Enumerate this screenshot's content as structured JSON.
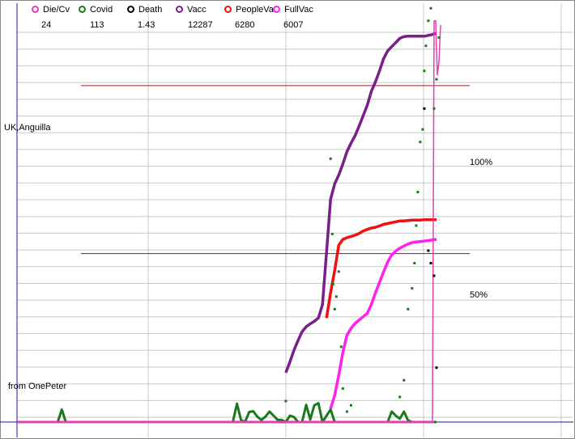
{
  "legend": [
    {
      "label": "Die/Cv",
      "value": "24",
      "color": "#e040b0"
    },
    {
      "label": "Covid",
      "value": "113",
      "color": "#1a7a1a"
    },
    {
      "label": "Death",
      "value": "1.43",
      "color": "#000000"
    },
    {
      "label": "Vacc",
      "value": "12287",
      "color": "#7a1f8a"
    },
    {
      "label": "PeopleVa",
      "value": "6280",
      "color": "#ee1111"
    },
    {
      "label": "FullVac",
      "value": "6007",
      "color": "#ff22ee"
    }
  ],
  "labels": {
    "region": "UK,Anguilla",
    "source": "from OnePeter",
    "ref_100": "100%",
    "ref_50": "50%"
  },
  "chart_data": {
    "type": "line",
    "x": [
      0,
      5,
      10,
      15,
      20,
      25,
      30,
      35,
      40,
      45,
      50,
      55,
      60,
      65,
      70,
      75,
      80,
      85,
      90,
      95,
      100,
      105,
      110,
      115,
      120,
      125,
      130,
      135,
      140,
      145,
      150,
      155,
      160,
      165,
      170,
      175,
      180,
      185,
      190,
      195,
      200,
      205,
      210,
      215,
      220,
      225,
      230,
      235,
      240,
      245,
      250,
      255,
      260,
      265,
      270,
      275,
      280,
      285,
      290,
      295,
      300,
      305,
      310,
      315,
      320,
      325,
      330,
      335,
      340,
      345,
      350,
      355,
      360,
      365,
      370,
      375,
      380,
      385,
      390,
      395,
      400,
      405,
      410,
      415,
      420,
      425,
      430,
      435,
      440,
      445,
      450,
      455,
      460,
      465,
      470,
      475,
      480,
      485,
      490,
      495,
      500,
      505,
      510,
      515
    ],
    "xlim": [
      0,
      515
    ],
    "ylim": [
      0,
      100
    ],
    "reference_lines": [
      {
        "label": "100%",
        "y": 80.5,
        "color": "#dd0000"
      },
      {
        "label": "50%",
        "y": 40.3,
        "color": "#6a1a6a"
      }
    ],
    "series": [
      {
        "name": "Covid",
        "color": "#1a7a1a",
        "style": "line",
        "values": [
          0,
          0,
          0,
          0,
          0,
          0,
          0,
          0,
          0,
          0,
          0,
          3,
          0,
          0,
          0,
          0,
          0,
          0,
          0,
          0,
          0,
          0,
          0,
          0,
          0,
          0,
          0,
          0,
          0,
          0,
          0,
          0,
          0,
          0,
          0,
          0,
          0,
          0,
          0,
          0,
          0,
          0,
          0,
          0,
          0,
          0,
          0,
          0,
          0,
          0,
          0,
          0,
          0,
          0,
          4.4,
          0.5,
          0,
          2.4,
          2.6,
          1.3,
          0.5,
          1.3,
          2.5,
          1.5,
          0.5,
          0.5,
          0,
          1.5,
          1.2,
          0,
          0,
          4.1,
          0.6,
          4,
          4.5,
          0,
          1.5,
          3,
          0,
          0,
          0,
          0,
          0,
          0,
          0,
          0,
          0,
          0,
          0,
          0,
          0,
          0,
          2.5,
          1.5,
          0.8,
          2.5,
          0.4,
          0,
          0,
          0,
          0,
          0,
          0,
          0
        ]
      },
      {
        "name": "Vacc",
        "color": "#7a1f8a",
        "style": "line",
        "x": [
          330,
          335,
          340,
          345,
          350,
          355,
          360,
          365,
          370,
          375,
          380,
          385,
          390,
          395,
          400,
          405,
          410,
          415,
          420,
          425,
          430,
          435,
          440,
          445,
          450,
          455,
          460,
          465,
          470,
          475,
          480,
          485,
          490,
          495,
          500,
          505,
          510,
          515
        ],
        "values": [
          11.8,
          14.4,
          17.2,
          19.5,
          21.6,
          22.8,
          23.5,
          24.1,
          24.9,
          28.1,
          40.6,
          53.3,
          57.0,
          59.1,
          61.7,
          64.7,
          66.7,
          68.5,
          70.8,
          73.3,
          75.8,
          79.1,
          81.4,
          84.0,
          86.9,
          88.8,
          89.8,
          90.8,
          91.8,
          92.2,
          92.3,
          92.3,
          92.3,
          92.3,
          92.3,
          92.5,
          92.7,
          93.0
        ]
      },
      {
        "name": "PeopleVa",
        "color": "#ee1111",
        "style": "line",
        "x": [
          380,
          385,
          390,
          395,
          400,
          405,
          410,
          415,
          420,
          425,
          430,
          435,
          440,
          445,
          450,
          455,
          460,
          465,
          470,
          475,
          480,
          485,
          490,
          495,
          500,
          505,
          510,
          515
        ],
        "values": [
          24.9,
          30.9,
          36.3,
          42.3,
          43.7,
          44.1,
          44.4,
          44.7,
          45.1,
          45.7,
          46.1,
          46.4,
          46.6,
          46.9,
          47.3,
          47.5,
          47.7,
          47.9,
          48.1,
          48.1,
          48.2,
          48.3,
          48.3,
          48.3,
          48.4,
          48.4,
          48.4,
          48.4
        ]
      },
      {
        "name": "FullVac",
        "color": "#ff22ee",
        "style": "line",
        "x": [
          385,
          390,
          395,
          400,
          405,
          410,
          415,
          420,
          425,
          430,
          435,
          440,
          445,
          450,
          455,
          460,
          465,
          470,
          475,
          480,
          485,
          490,
          495,
          500,
          505,
          510,
          515
        ],
        "values": [
          3.2,
          6.4,
          11.2,
          16.6,
          20.8,
          22.4,
          23.6,
          24.4,
          25.2,
          26.0,
          28.1,
          30.9,
          33.4,
          35.9,
          38.3,
          40.0,
          40.9,
          41.6,
          42.1,
          42.6,
          42.9,
          43.1,
          43.2,
          43.3,
          43.4,
          43.6,
          43.7
        ]
      },
      {
        "name": "Die/Cv",
        "color": "#e040b0",
        "style": "line",
        "x": [
          0,
          100,
          200,
          300,
          400,
          500,
          505,
          510,
          512,
          514,
          516,
          518,
          520
        ],
        "values": [
          0,
          0,
          0,
          0,
          0,
          0,
          0,
          0,
          96,
          96,
          83,
          86,
          95
        ]
      },
      {
        "name": "Covid",
        "color": "#1a7a1a",
        "style": "points",
        "x": [
          330,
          385,
          387,
          388,
          390,
          392,
          395,
          398,
          400,
          405,
          410,
          470,
          475,
          480,
          485,
          488,
          490,
          492,
          495,
          498,
          500,
          502,
          505,
          508,
          512,
          515,
          518
        ],
        "values": [
          5,
          63,
          45,
          33,
          27,
          30,
          36,
          18,
          8,
          2.5,
          4,
          6,
          10,
          27,
          32,
          38,
          47,
          55,
          67,
          70,
          84,
          90,
          96,
          99,
          75,
          82,
          92
        ]
      },
      {
        "name": "Death",
        "color": "#000000",
        "style": "points",
        "x": [
          500,
          505,
          508,
          512,
          515
        ],
        "values": [
          75,
          41,
          38,
          35,
          13
        ]
      }
    ]
  }
}
